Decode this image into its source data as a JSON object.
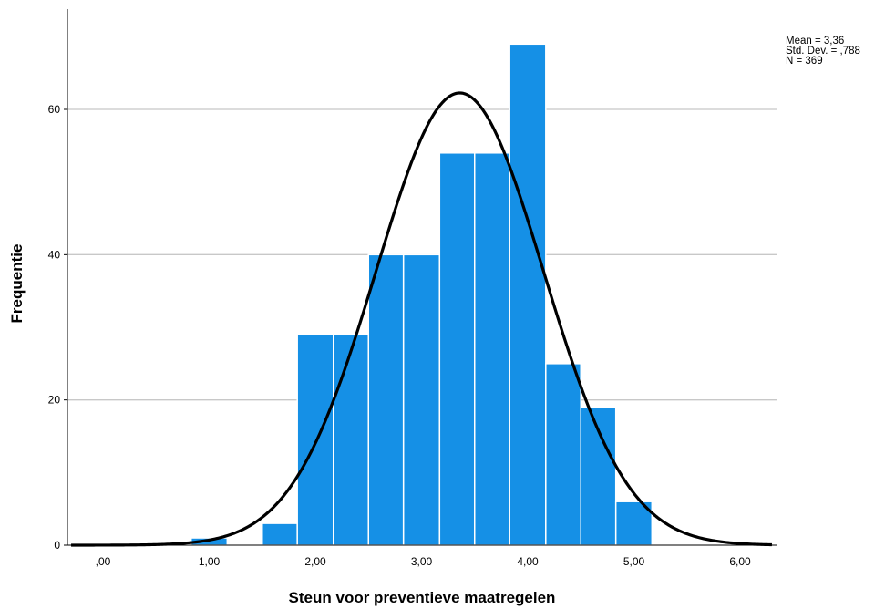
{
  "chart_data": {
    "type": "bar",
    "xlabel": "Steun voor preventieve maatregelen",
    "ylabel": "Frequentie",
    "xlim": [
      -0.3,
      6.3
    ],
    "ylim": [
      0,
      70
    ],
    "x_ticks": [
      {
        "value": 0,
        "label": ",00"
      },
      {
        "value": 1,
        "label": "1,00"
      },
      {
        "value": 2,
        "label": "2,00"
      },
      {
        "value": 3,
        "label": "3,00"
      },
      {
        "value": 4,
        "label": "4,00"
      },
      {
        "value": 5,
        "label": "5,00"
      },
      {
        "value": 6,
        "label": "6,00"
      }
    ],
    "y_ticks": [
      0,
      20,
      40,
      60
    ],
    "grid": "horizontal",
    "bins": [
      {
        "start": 0.83,
        "end": 1.17,
        "count": 1
      },
      {
        "start": 1.5,
        "end": 1.83,
        "count": 3
      },
      {
        "start": 1.83,
        "end": 2.17,
        "count": 29
      },
      {
        "start": 2.17,
        "end": 2.5,
        "count": 29
      },
      {
        "start": 2.5,
        "end": 2.83,
        "count": 40
      },
      {
        "start": 2.83,
        "end": 3.17,
        "count": 40
      },
      {
        "start": 3.17,
        "end": 3.5,
        "count": 54
      },
      {
        "start": 3.5,
        "end": 3.83,
        "count": 54
      },
      {
        "start": 3.83,
        "end": 4.17,
        "count": 69
      },
      {
        "start": 4.17,
        "end": 4.5,
        "count": 25
      },
      {
        "start": 4.5,
        "end": 4.83,
        "count": 19
      },
      {
        "start": 4.83,
        "end": 5.17,
        "count": 6
      }
    ],
    "normal_curve": {
      "mean": 3.36,
      "sd": 0.788,
      "n": 369,
      "bin_width": 0.3333
    },
    "bar_color": "#1590e6",
    "curve_color": "#000000",
    "stats": {
      "mean": "Mean = 3,36",
      "sd": "Std. Dev. = ,788",
      "n": "N = 369"
    }
  }
}
